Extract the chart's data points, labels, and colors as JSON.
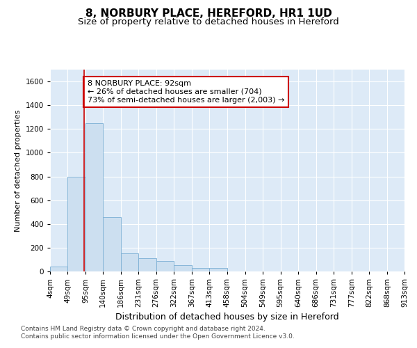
{
  "title": "8, NORBURY PLACE, HEREFORD, HR1 1UD",
  "subtitle": "Size of property relative to detached houses in Hereford",
  "xlabel": "Distribution of detached houses by size in Hereford",
  "ylabel": "Number of detached properties",
  "annotation_text": "8 NORBURY PLACE: 92sqm\n← 26% of detached houses are smaller (704)\n73% of semi-detached houses are larger (2,003) →",
  "property_size": 92,
  "bar_color": "#ccdff0",
  "bar_edge_color": "#7bafd4",
  "annotation_box_color": "white",
  "annotation_box_edge_color": "#cc0000",
  "redline_color": "#cc0000",
  "background_color": "#ddeaf7",
  "grid_color": "#c0d0e0",
  "footer_text": "Contains HM Land Registry data © Crown copyright and database right 2024.\nContains public sector information licensed under the Open Government Licence v3.0.",
  "bins": [
    4,
    49,
    95,
    140,
    186,
    231,
    276,
    322,
    367,
    413,
    458,
    504,
    549,
    595,
    640,
    686,
    731,
    777,
    822,
    868,
    913
  ],
  "bin_labels": [
    "4sqm",
    "49sqm",
    "95sqm",
    "140sqm",
    "186sqm",
    "231sqm",
    "276sqm",
    "322sqm",
    "367sqm",
    "413sqm",
    "458sqm",
    "504sqm",
    "549sqm",
    "595sqm",
    "640sqm",
    "686sqm",
    "731sqm",
    "777sqm",
    "822sqm",
    "868sqm",
    "913sqm"
  ],
  "counts": [
    40,
    800,
    1250,
    460,
    150,
    110,
    90,
    55,
    30,
    30,
    0,
    0,
    0,
    0,
    0,
    0,
    0,
    0,
    0,
    0
  ],
  "ylim": [
    0,
    1700
  ],
  "yticks": [
    0,
    200,
    400,
    600,
    800,
    1000,
    1200,
    1400,
    1600
  ],
  "title_fontsize": 11,
  "subtitle_fontsize": 9.5,
  "xlabel_fontsize": 9,
  "ylabel_fontsize": 8,
  "tick_fontsize": 7.5,
  "annotation_fontsize": 8,
  "footer_fontsize": 6.5
}
